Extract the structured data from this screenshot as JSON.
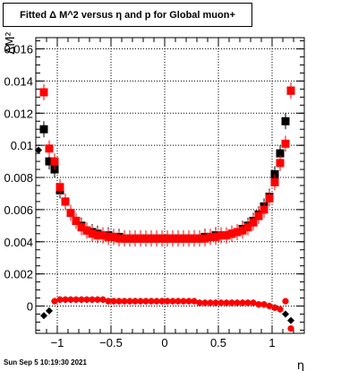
{
  "chart_data": {
    "type": "scatter",
    "title": "Fitted Δ M^2 versus η and p for Global muon+",
    "xlabel": "η",
    "ylabel": "ΔM²",
    "xlim": [
      -1.2,
      1.3
    ],
    "ylim": [
      -0.0017,
      0.0167
    ],
    "grid": true,
    "x_ticks": [
      -1,
      -0.5,
      0,
      0.5,
      1
    ],
    "x_tick_labels": [
      "−1",
      "−0.5",
      "0",
      "0.5",
      "1"
    ],
    "y_ticks": [
      0,
      0.002,
      0.004,
      0.006,
      0.008,
      0.01,
      0.012,
      0.014,
      0.016
    ],
    "y_tick_labels": [
      "0",
      "0.002",
      "0.004",
      "0.006",
      "0.008",
      "0.01",
      "0.012",
      "0.014",
      "0.016"
    ],
    "series": [
      {
        "marker": "square",
        "color_main": "#000000",
        "color_overlay": "#ff0000",
        "x": [
          -1.125,
          -1.075,
          -1.025,
          -0.975,
          -0.925,
          -0.875,
          -0.825,
          -0.775,
          -0.725,
          -0.675,
          -0.625,
          -0.575,
          -0.525,
          -0.475,
          -0.425,
          -0.375,
          -0.325,
          -0.275,
          -0.225,
          -0.175,
          -0.125,
          -0.075,
          -0.025,
          0.025,
          0.075,
          0.125,
          0.175,
          0.225,
          0.275,
          0.325,
          0.375,
          0.425,
          0.475,
          0.525,
          0.575,
          0.625,
          0.675,
          0.725,
          0.775,
          0.825,
          0.875,
          0.925,
          0.975,
          1.025,
          1.075,
          1.125,
          1.175
        ],
        "main": [
          0.011,
          0.009,
          0.0085,
          0.0072,
          0.0065,
          0.0058,
          0.0053,
          0.005,
          0.0047,
          0.0046,
          0.0045,
          0.0044,
          0.0044,
          0.0043,
          0.0043,
          0.0042,
          0.0042,
          0.0042,
          0.0042,
          0.0042,
          0.0042,
          0.0042,
          0.0042,
          0.0042,
          0.0042,
          0.0042,
          0.0042,
          0.0042,
          0.0042,
          0.0042,
          0.0043,
          0.0043,
          0.0044,
          0.0044,
          0.0044,
          0.0045,
          0.0046,
          0.0048,
          0.005,
          0.0053,
          0.0057,
          0.0062,
          0.0068,
          0.0082,
          0.0095,
          0.0115,
          0.0134
        ],
        "overlay": [
          0.0133,
          0.0098,
          0.009,
          0.0074,
          0.0065,
          0.0058,
          0.0053,
          0.0049,
          0.0047,
          0.0045,
          0.0044,
          0.0044,
          0.0043,
          0.0043,
          0.0042,
          0.0042,
          0.0042,
          0.0042,
          0.0042,
          0.0042,
          0.0042,
          0.0042,
          0.0042,
          0.0042,
          0.0042,
          0.0042,
          0.0042,
          0.0042,
          0.0042,
          0.0042,
          0.0042,
          0.0043,
          0.0043,
          0.0044,
          0.0044,
          0.0045,
          0.0046,
          0.0047,
          0.0049,
          0.0052,
          0.0056,
          0.006,
          0.0067,
          0.0077,
          0.0089,
          0.0101,
          0.0134
        ]
      },
      {
        "marker": "diamond/circle",
        "color_main": "#000000",
        "color_overlay": "#ff0000",
        "x": [
          -1.175,
          -1.125,
          -1.075,
          -1.025,
          -0.975,
          -0.925,
          -0.875,
          -0.825,
          -0.775,
          -0.725,
          -0.675,
          -0.625,
          -0.575,
          -0.525,
          -0.475,
          -0.425,
          -0.375,
          -0.325,
          -0.275,
          -0.225,
          -0.175,
          -0.125,
          -0.075,
          -0.025,
          0.025,
          0.075,
          0.125,
          0.175,
          0.225,
          0.275,
          0.325,
          0.375,
          0.425,
          0.475,
          0.525,
          0.575,
          0.625,
          0.675,
          0.725,
          0.775,
          0.825,
          0.875,
          0.925,
          0.975,
          1.025,
          1.075,
          1.125,
          1.175
        ],
        "main": [
          0.0097,
          -0.0006,
          -0.0003,
          0.0003,
          0.0004,
          0.0004,
          0.0004,
          0.0004,
          0.0004,
          0.0004,
          0.0004,
          0.0004,
          0.0004,
          0.0003,
          0.0003,
          0.0003,
          0.0003,
          0.0003,
          0.0003,
          0.0003,
          0.0003,
          0.0003,
          0.0003,
          0.0003,
          0.0003,
          0.0003,
          0.0003,
          0.0003,
          0.0003,
          0.0003,
          0.0002,
          0.0002,
          0.0002,
          0.0002,
          0.0002,
          0.0002,
          0.0002,
          0.0002,
          0.0002,
          0.0002,
          0.0002,
          0.0001,
          0.0001,
          0.0,
          -0.0001,
          -0.0002,
          -0.0005,
          -0.0009
        ],
        "overlay": [
          null,
          null,
          null,
          0.0003,
          0.0004,
          0.0004,
          0.0004,
          0.0004,
          0.0004,
          0.0004,
          0.0004,
          0.0004,
          0.0004,
          0.0003,
          0.0003,
          0.0003,
          0.0003,
          0.0003,
          0.0003,
          0.0003,
          0.0003,
          0.0003,
          0.0003,
          0.0003,
          0.0003,
          0.0003,
          0.0003,
          0.0003,
          0.0003,
          0.0003,
          0.0002,
          0.0002,
          0.0002,
          0.0002,
          0.0002,
          0.0002,
          0.0002,
          0.0002,
          0.0002,
          0.0002,
          0.0002,
          0.0001,
          0.0001,
          0.0,
          -0.0001,
          -0.0002,
          0.0003,
          -0.0014
        ]
      }
    ]
  },
  "timestamp": "Sun Sep  5 10:19:30 2021"
}
